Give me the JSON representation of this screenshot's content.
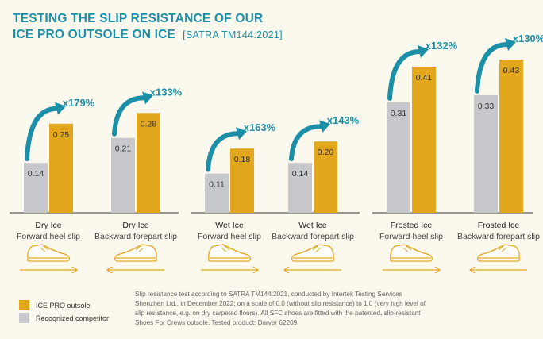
{
  "title": {
    "line1": "TESTING THE SLIP RESISTANCE OF OUR",
    "line2": "ICE PRO OUTSOLE ON ICE",
    "standard": "[SATRA TM144:2021]"
  },
  "colors": {
    "ice_pro": "#e3a71e",
    "competitor": "#c7c8cb",
    "accent": "#1c8fa8",
    "background": "#fbf8ee"
  },
  "chart_data": {
    "type": "bar",
    "groups": [
      {
        "categories": [
          {
            "line1": "Dry Ice",
            "line2": "Forward heel slip",
            "competitor": 0.14,
            "ice_pro": 0.25,
            "increase": "x179%",
            "direction": "forward"
          },
          {
            "line1": "Dry Ice",
            "line2": "Backward forepart slip",
            "competitor": 0.21,
            "ice_pro": 0.28,
            "increase": "x133%",
            "direction": "backward"
          }
        ]
      },
      {
        "categories": [
          {
            "line1": "Wet Ice",
            "line2": "Forward heel slip",
            "competitor": 0.11,
            "ice_pro": 0.18,
            "increase": "x163%",
            "direction": "forward"
          },
          {
            "line1": "Wet Ice",
            "line2": "Backward forepart slip",
            "competitor": 0.14,
            "ice_pro": 0.2,
            "increase": "x143%",
            "direction": "backward"
          }
        ]
      },
      {
        "categories": [
          {
            "line1": "Frosted Ice",
            "line2": "Forward heel slip",
            "competitor": 0.31,
            "ice_pro": 0.41,
            "increase": "x132%",
            "direction": "forward"
          },
          {
            "line1": "Frosted Ice",
            "line2": "Backward forepart slip",
            "competitor": 0.33,
            "ice_pro": 0.43,
            "increase": "x130%",
            "direction": "backward"
          }
        ]
      }
    ],
    "series": [
      {
        "key": "ice_pro",
        "name": "ICE PRO outsole"
      },
      {
        "key": "competitor",
        "name": "Recognized competitor"
      }
    ],
    "ylim": [
      0,
      0.43
    ]
  },
  "footnote": "Slip resistance test according to SATRA TM144:2021, conducted by Intertek Testing Services Shenzhen Ltd., in December 2022; on a scale of 0.0 (without slip resistance) to 1.0 (very high level of slip resistance, e.g. on dry carpeted floors). All SFC shoes are fitted with the patented, slip-resistant Shoes For Crews outsole. Tested product: Darver 62209."
}
